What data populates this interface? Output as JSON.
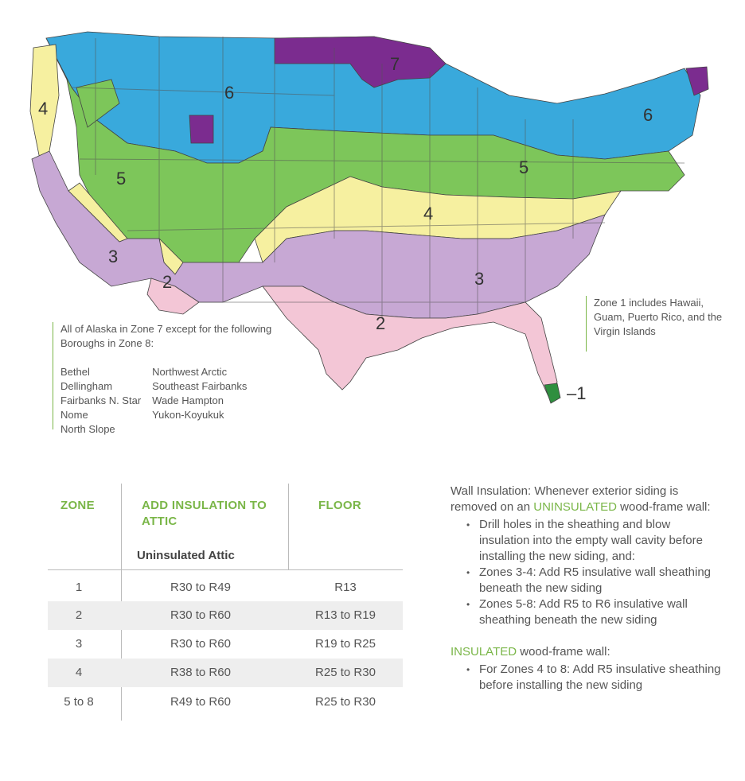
{
  "map": {
    "zone_labels": [
      "1",
      "2",
      "3",
      "4",
      "5",
      "6",
      "7"
    ],
    "zone_colors": {
      "1": "#2f8f3f",
      "2": "#f3c6d6",
      "3": "#c7a8d4",
      "4": "#f6f0a0",
      "5": "#7dc65a",
      "6": "#39a9dc",
      "7": "#7b2c8f"
    },
    "alaska_note": {
      "intro": "All of Alaska in Zone 7 except for the following Boroughs in Zone 8:",
      "boroughs_left": [
        "Bethel",
        "Dellingham",
        "Fairbanks N. Star",
        "Nome",
        "North Slope"
      ],
      "boroughs_right": [
        "Northwest Arctic",
        "Southeast Fairbanks",
        "Wade Hampton",
        "Yukon-Koyukuk"
      ]
    },
    "zone1_note": "Zone 1 includes Hawaii, Guam, Puerto Rico, and the Virgin Islands",
    "zone1_pointer": "–1"
  },
  "table": {
    "headers": {
      "zone": "ZONE",
      "attic": "ADD INSULATION TO ATTIC",
      "attic_sub": "Uninsulated Attic",
      "floor": "FLOOR"
    },
    "rows": [
      {
        "zone": "1",
        "attic": "R30 to R49",
        "floor": "R13"
      },
      {
        "zone": "2",
        "attic": "R30 to R60",
        "floor": "R13 to R19"
      },
      {
        "zone": "3",
        "attic": "R30 to R60",
        "floor": "R19 to R25"
      },
      {
        "zone": "4",
        "attic": "R38 to R60",
        "floor": "R25 to R30"
      },
      {
        "zone": "5 to 8",
        "attic": "R49 to R60",
        "floor": "R25 to R30"
      }
    ]
  },
  "wall": {
    "intro_pre": "Wall Insulation: Whenever exterior siding is removed on an ",
    "intro_highlight": "UNINSULATED",
    "intro_post": " wood-frame wall:",
    "uninsulated_items": [
      "Drill holes in the sheathing and blow insulation into the empty wall cavity before installing the new siding, and:",
      "Zones 3-4: Add R5 insulative wall sheathing beneath the new siding",
      "Zones 5-8: Add R5 to R6 insulative wall sheathing beneath the new siding"
    ],
    "insulated_highlight": "INSULATED",
    "insulated_post": " wood-frame wall:",
    "insulated_items": [
      "For Zones 4 to 8: Add R5 insulative sheathing before installing the new siding"
    ]
  }
}
